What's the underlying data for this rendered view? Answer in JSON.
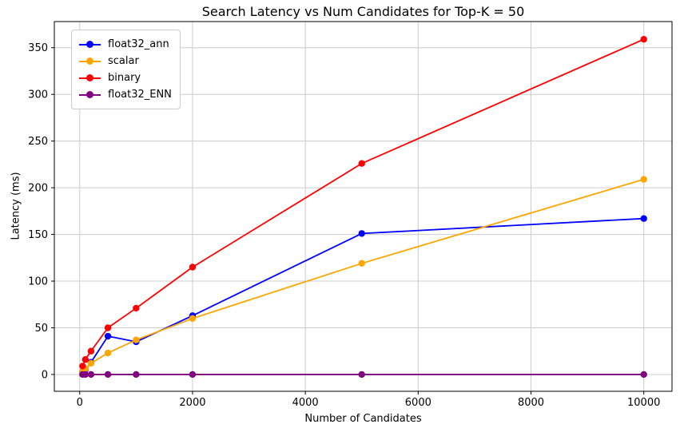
{
  "chart_data": {
    "type": "line",
    "title": "Search Latency vs Num Candidates for Top-K = 50",
    "xlabel": "Number of Candidates",
    "ylabel": "Latency (ms)",
    "x": [
      50,
      100,
      200,
      500,
      1000,
      2000,
      5000,
      10000
    ],
    "series": [
      {
        "name": "float32_ann",
        "color": "#0000ff",
        "values": [
          3,
          5,
          13,
          41,
          35,
          63,
          151,
          167
        ]
      },
      {
        "name": "scalar",
        "color": "#ffa500",
        "values": [
          3,
          6,
          12,
          23,
          37,
          60,
          119,
          209
        ]
      },
      {
        "name": "binary",
        "color": "#ff0000",
        "values": [
          9,
          16,
          25,
          50,
          71,
          115,
          226,
          359
        ]
      },
      {
        "name": "float32_ENN",
        "color": "#800080",
        "values": [
          0,
          0,
          0,
          0,
          0,
          0,
          0,
          0
        ]
      }
    ],
    "x_ticks": [
      0,
      2000,
      4000,
      6000,
      8000,
      10000
    ],
    "y_ticks": [
      0,
      50,
      100,
      150,
      200,
      250,
      300,
      350
    ],
    "xlim": [
      -450,
      10500
    ],
    "ylim": [
      -18,
      378
    ],
    "grid": true,
    "grid_color": "#cccccc",
    "spine_color": "#000000",
    "background": "#ffffff",
    "legend_position": "upper left",
    "marker": "circle"
  }
}
